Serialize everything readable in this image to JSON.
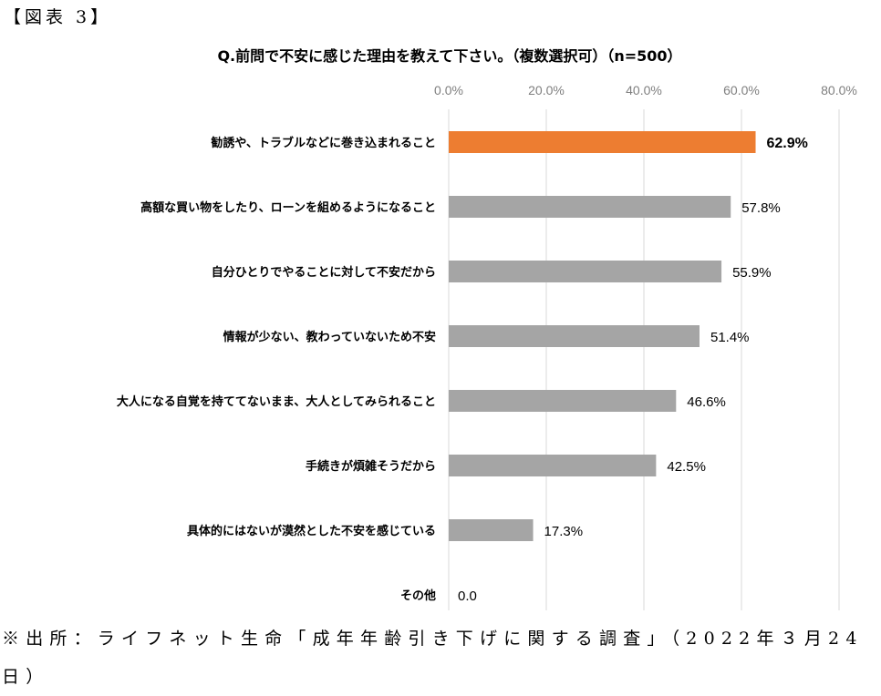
{
  "figure_label": "【図表 3】",
  "footnote": "※出所：ライフネット生命「成年年齢引き下げに関する調査」（2022年３月24日）",
  "colors": {
    "highlight": "#ED7D31",
    "bar": "#A5A5A5",
    "grid": "#D9D9D9"
  },
  "chart_data": {
    "type": "bar",
    "orientation": "horizontal",
    "title": "Q.前問で不安に感じた理由を教えて下さい。（複数選択可）（n=500）",
    "categories": [
      "勧誘や、トラブルなどに巻き込まれること",
      "高額な買い物をしたり、ローンを組めるようになること",
      "自分ひとりでやることに対して不安だから",
      "情報が少ない、教わっていないため不安",
      "大人になる自覚を持ててないまま、大人としてみられること",
      "手続きが煩雑そうだから",
      "具体的にはないが漠然とした不安を感じている",
      "その他"
    ],
    "values": [
      62.9,
      57.8,
      55.9,
      51.4,
      46.6,
      42.5,
      17.3,
      0.0
    ],
    "data_labels": [
      "62.9%",
      "57.8%",
      "55.9%",
      "51.4%",
      "46.6%",
      "42.5%",
      "17.3%",
      "0.0"
    ],
    "highlight_index": 0,
    "xlim": [
      0,
      80
    ],
    "xticks": [
      "0.0%",
      "20.0%",
      "40.0%",
      "60.0%",
      "80.0%"
    ],
    "xtick_values": [
      0,
      20,
      40,
      60,
      80
    ],
    "axis_position": "top",
    "grid": true
  }
}
